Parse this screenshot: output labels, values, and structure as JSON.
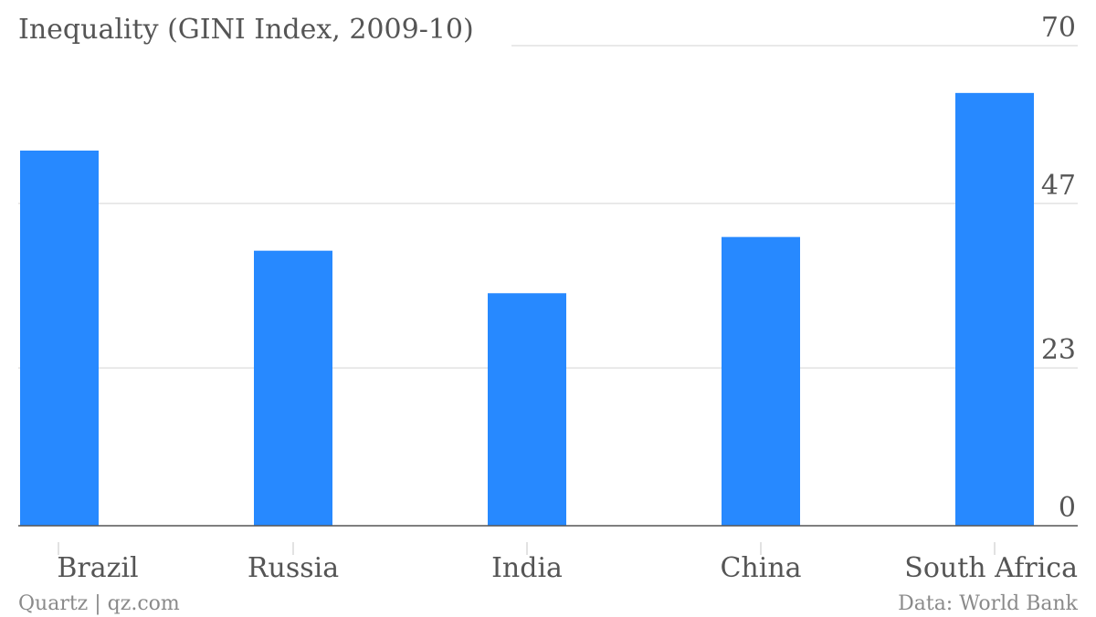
{
  "chart_data": {
    "type": "bar",
    "title": "Inequality (GINI Index, 2009-10)",
    "categories": [
      "Brazil",
      "Russia",
      "India",
      "China",
      "South Africa"
    ],
    "values": [
      54.7,
      40.1,
      33.9,
      42.1,
      63.1
    ],
    "ylim": [
      0,
      70
    ],
    "yticks": [
      0,
      23,
      47,
      70
    ],
    "ytick_labels": [
      "0",
      "23",
      "47",
      "70"
    ],
    "grid": true,
    "bar_color": "#2789ff",
    "source_left": "Quartz | qz.com",
    "source_right": "Data: World Bank"
  }
}
